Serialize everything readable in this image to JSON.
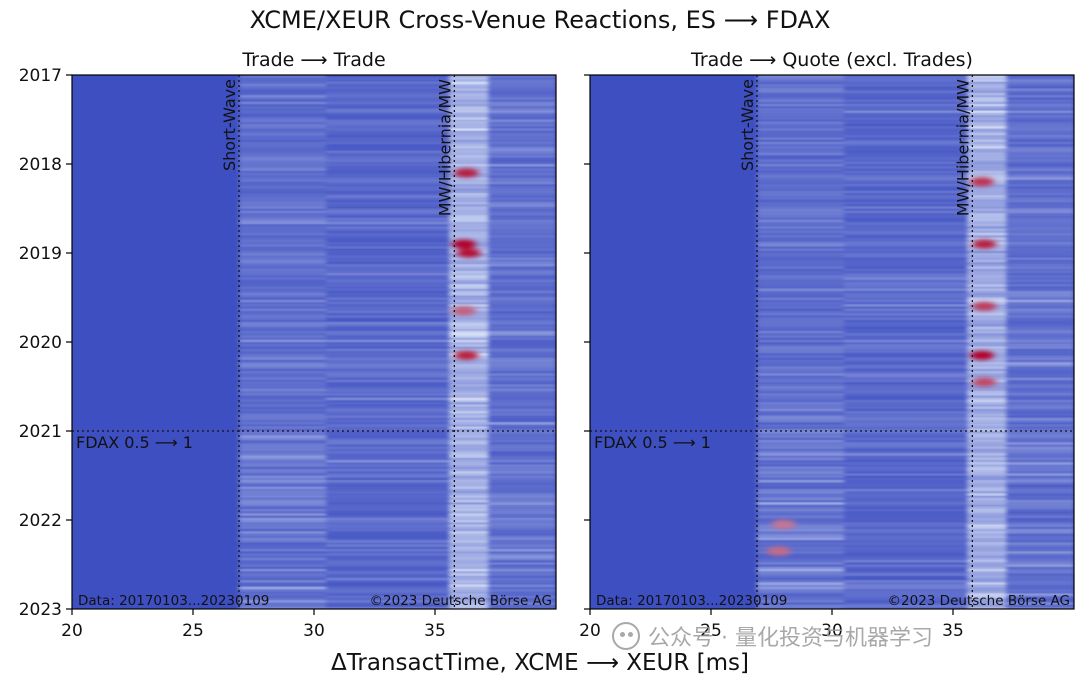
{
  "chart_data": {
    "type": "heatmap",
    "title": "XCME/XEUR Cross-Venue Reactions, ES ⟶ FDAX",
    "xlabel": "ΔTransactTime, XCME ⟶ XEUR [ms]",
    "ylabel": "",
    "y_ticks": [
      "2017",
      "2018",
      "2019",
      "2020",
      "2021",
      "2022",
      "2023"
    ],
    "y_range": [
      2017,
      2023
    ],
    "x_ticks": [
      20,
      25,
      30,
      35
    ],
    "x_range": [
      20,
      40
    ],
    "colors": {
      "low": "#3b4cc0",
      "mid": "#dde6f8",
      "high": "#b40426",
      "background": "#3e4fc2"
    },
    "panels": [
      {
        "subtitle": "Trade ⟶ Trade",
        "vlines": [
          {
            "x": 26.9,
            "label": "Short-Wave"
          },
          {
            "x": 35.8,
            "label": "MW/Hibernia/MW"
          }
        ],
        "hline": {
          "y": 2021.0,
          "label": "FDAX 0.5 ⟶ 1"
        },
        "footer_left": "Data: 20170103...20230109",
        "footer_right": "©2023 Deutsche Börse AG",
        "hotspots": [
          {
            "year": 2018.1,
            "x": 36.3,
            "intensity": 0.9
          },
          {
            "year": 2018.9,
            "x": 36.2,
            "intensity": 1.0
          },
          {
            "year": 2019.0,
            "x": 36.4,
            "intensity": 0.95
          },
          {
            "year": 2020.15,
            "x": 36.3,
            "intensity": 0.9
          },
          {
            "year": 2019.65,
            "x": 36.2,
            "intensity": 0.6
          }
        ]
      },
      {
        "subtitle": "Trade ⟶ Quote (excl. Trades)",
        "vlines": [
          {
            "x": 26.9,
            "label": "Short-Wave"
          },
          {
            "x": 35.8,
            "label": "MW/Hibernia/MW"
          }
        ],
        "hline": {
          "y": 2021.0,
          "label": "FDAX 0.5 ⟶ 1"
        },
        "footer_left": "Data: 20170103...20230109",
        "footer_right": "©2023 Deutsche Börse AG",
        "hotspots": [
          {
            "year": 2018.2,
            "x": 36.2,
            "intensity": 0.8
          },
          {
            "year": 2018.9,
            "x": 36.3,
            "intensity": 0.9
          },
          {
            "year": 2019.6,
            "x": 36.3,
            "intensity": 0.75
          },
          {
            "year": 2020.15,
            "x": 36.2,
            "intensity": 1.0
          },
          {
            "year": 2020.45,
            "x": 36.3,
            "intensity": 0.7
          },
          {
            "year": 2022.05,
            "x": 28.0,
            "intensity": 0.5
          },
          {
            "year": 2022.35,
            "x": 27.8,
            "intensity": 0.55
          }
        ]
      }
    ]
  },
  "watermark": {
    "text": "公众号 · 量化投资与机器学习",
    "icon": "wechat-icon"
  }
}
